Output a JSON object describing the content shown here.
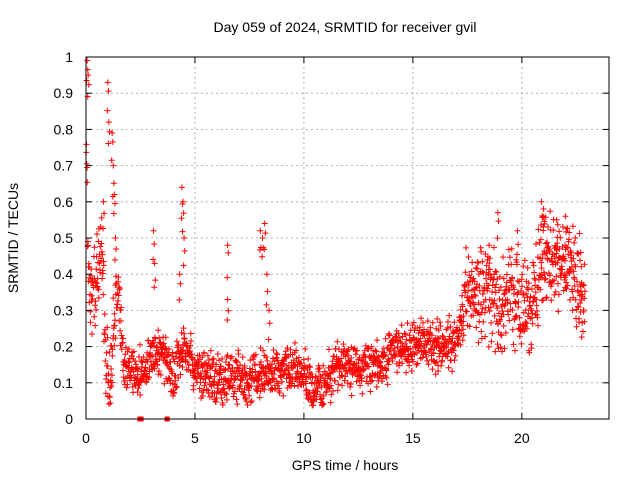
{
  "chart_data": {
    "type": "scatter",
    "title": "Day 059 of 2024, SRMTID for receiver gvil",
    "xlabel": "GPS time / hours",
    "ylabel": "SRMTID / TECUs",
    "xlim": [
      0,
      24
    ],
    "ylim": [
      0,
      1
    ],
    "xticks": [
      0,
      5,
      10,
      15,
      20
    ],
    "yticks": [
      0,
      0.1,
      0.2,
      0.3,
      0.4,
      0.5,
      0.6,
      0.7,
      0.8,
      0.9,
      1
    ],
    "xtick_labels": [
      "0",
      "5",
      "10",
      "15",
      "20"
    ],
    "ytick_labels": [
      "0",
      "0.1",
      "0.2",
      "0.3",
      "0.4",
      "0.5",
      "0.6",
      "0.7",
      "0.8",
      "0.9",
      "1"
    ],
    "grid": true,
    "marker": "+",
    "color": "#ff0000",
    "series": [
      {
        "name": "SRMTID",
        "trend": [
          [
            0.0,
            0.9
          ],
          [
            0.1,
            0.38
          ],
          [
            0.3,
            0.33
          ],
          [
            0.5,
            0.38
          ],
          [
            0.7,
            0.5
          ],
          [
            0.9,
            0.2
          ],
          [
            1.1,
            0.1
          ],
          [
            1.3,
            0.3
          ],
          [
            1.5,
            0.38
          ],
          [
            1.7,
            0.15
          ],
          [
            2.0,
            0.14
          ],
          [
            2.5,
            0.12
          ],
          [
            3.0,
            0.18
          ],
          [
            3.5,
            0.18
          ],
          [
            4.0,
            0.12
          ],
          [
            4.5,
            0.22
          ],
          [
            5.0,
            0.13
          ],
          [
            5.5,
            0.13
          ],
          [
            6.0,
            0.1
          ],
          [
            6.5,
            0.11
          ],
          [
            7.0,
            0.11
          ],
          [
            7.5,
            0.1
          ],
          [
            8.0,
            0.12
          ],
          [
            8.5,
            0.13
          ],
          [
            9.0,
            0.12
          ],
          [
            9.5,
            0.15
          ],
          [
            10.0,
            0.12
          ],
          [
            10.5,
            0.08
          ],
          [
            11.0,
            0.1
          ],
          [
            11.5,
            0.15
          ],
          [
            12.0,
            0.15
          ],
          [
            12.5,
            0.14
          ],
          [
            13.0,
            0.14
          ],
          [
            13.5,
            0.15
          ],
          [
            14.0,
            0.18
          ],
          [
            14.5,
            0.2
          ],
          [
            15.0,
            0.2
          ],
          [
            15.5,
            0.22
          ],
          [
            16.0,
            0.2
          ],
          [
            16.5,
            0.2
          ],
          [
            17.0,
            0.22
          ],
          [
            17.5,
            0.35
          ],
          [
            18.0,
            0.33
          ],
          [
            18.5,
            0.36
          ],
          [
            19.0,
            0.3
          ],
          [
            19.5,
            0.36
          ],
          [
            20.0,
            0.3
          ],
          [
            20.5,
            0.33
          ],
          [
            21.0,
            0.45
          ],
          [
            21.5,
            0.42
          ],
          [
            22.0,
            0.45
          ],
          [
            22.5,
            0.38
          ],
          [
            22.9,
            0.32
          ]
        ],
        "spikes": [
          [
            0.05,
            0.99
          ],
          [
            0.1,
            0.95
          ],
          [
            0.8,
            0.6
          ],
          [
            1.0,
            0.93
          ],
          [
            1.05,
            0.82
          ],
          [
            1.2,
            0.79
          ],
          [
            1.25,
            0.7
          ],
          [
            1.3,
            0.62
          ],
          [
            1.35,
            0.5
          ],
          [
            3.1,
            0.52
          ],
          [
            3.15,
            0.43
          ],
          [
            4.4,
            0.64
          ],
          [
            4.45,
            0.6
          ],
          [
            4.5,
            0.5
          ],
          [
            4.3,
            0.4
          ],
          [
            6.5,
            0.48
          ],
          [
            6.5,
            0.33
          ],
          [
            8.0,
            0.52
          ],
          [
            8.1,
            0.5
          ],
          [
            8.2,
            0.54
          ],
          [
            8.3,
            0.4
          ],
          [
            8.4,
            0.3
          ],
          [
            18.5,
            0.48
          ],
          [
            18.9,
            0.57
          ],
          [
            19.8,
            0.52
          ],
          [
            20.9,
            0.6
          ],
          [
            21.0,
            0.58
          ],
          [
            21.6,
            0.55
          ],
          [
            22.0,
            0.56
          ],
          [
            22.7,
            0.46
          ]
        ],
        "zero_points": [
          2.45,
          2.5,
          2.55,
          3.7,
          3.75
        ]
      }
    ]
  }
}
